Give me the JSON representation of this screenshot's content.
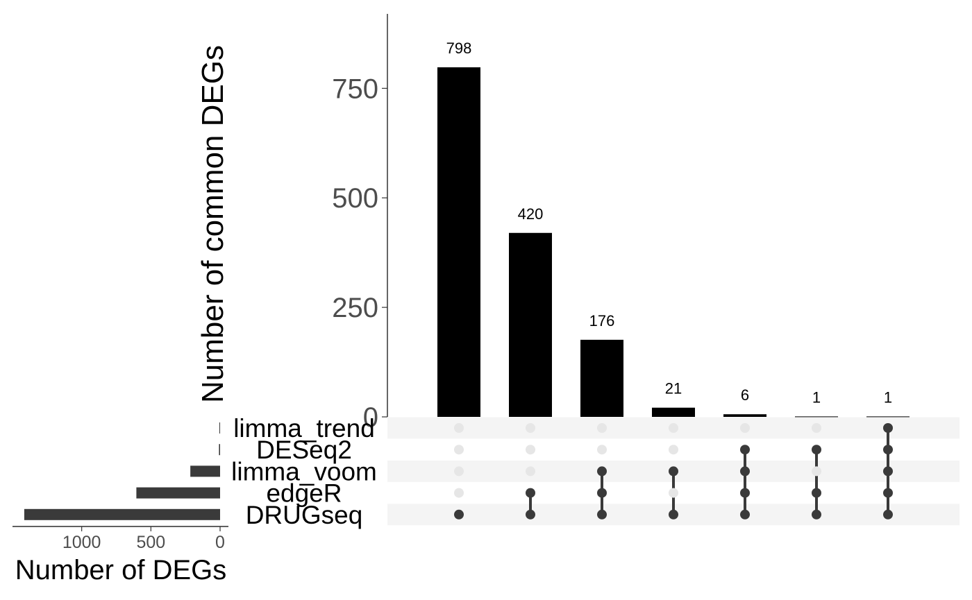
{
  "chart_data": {
    "type": "bar",
    "subtype": "upset",
    "intersection_bars": {
      "ylabel": "Number of common DEGs",
      "ylim": [
        0,
        920
      ],
      "yticks": [
        0,
        250,
        500,
        750
      ],
      "values": [
        798,
        420,
        176,
        21,
        6,
        1,
        1
      ],
      "value_labels": [
        "798",
        "420",
        "176",
        "21",
        "6",
        "1",
        "1"
      ],
      "bar_color": "#000000"
    },
    "sets": [
      "limma_trend",
      "DESeq2",
      "limma_voom",
      "edgeR",
      "DRUGseq"
    ],
    "set_sizes": {
      "xlabel": "Number of DEGs",
      "values": [
        5,
        8,
        215,
        605,
        1415
      ],
      "xlim_reversed": [
        1500,
        0
      ],
      "xticks": [
        1000,
        500,
        0
      ],
      "tick_labels": [
        "1000",
        "500",
        "0"
      ],
      "bar_color": "#3a3a3a"
    },
    "matrix": [
      [
        "DRUGseq"
      ],
      [
        "edgeR",
        "DRUGseq"
      ],
      [
        "limma_voom",
        "edgeR",
        "DRUGseq"
      ],
      [
        "limma_voom",
        "DRUGseq"
      ],
      [
        "DESeq2",
        "limma_voom",
        "edgeR",
        "DRUGseq"
      ],
      [
        "DESeq2",
        "edgeR",
        "DRUGseq"
      ],
      [
        "limma_trend",
        "DESeq2",
        "limma_voom",
        "edgeR",
        "DRUGseq"
      ]
    ],
    "dot_active_color": "#3a3a3a",
    "dot_inactive_color": "#e6e6e6",
    "stripe_color": "#f4f4f4",
    "grid": false,
    "legend": "none"
  }
}
